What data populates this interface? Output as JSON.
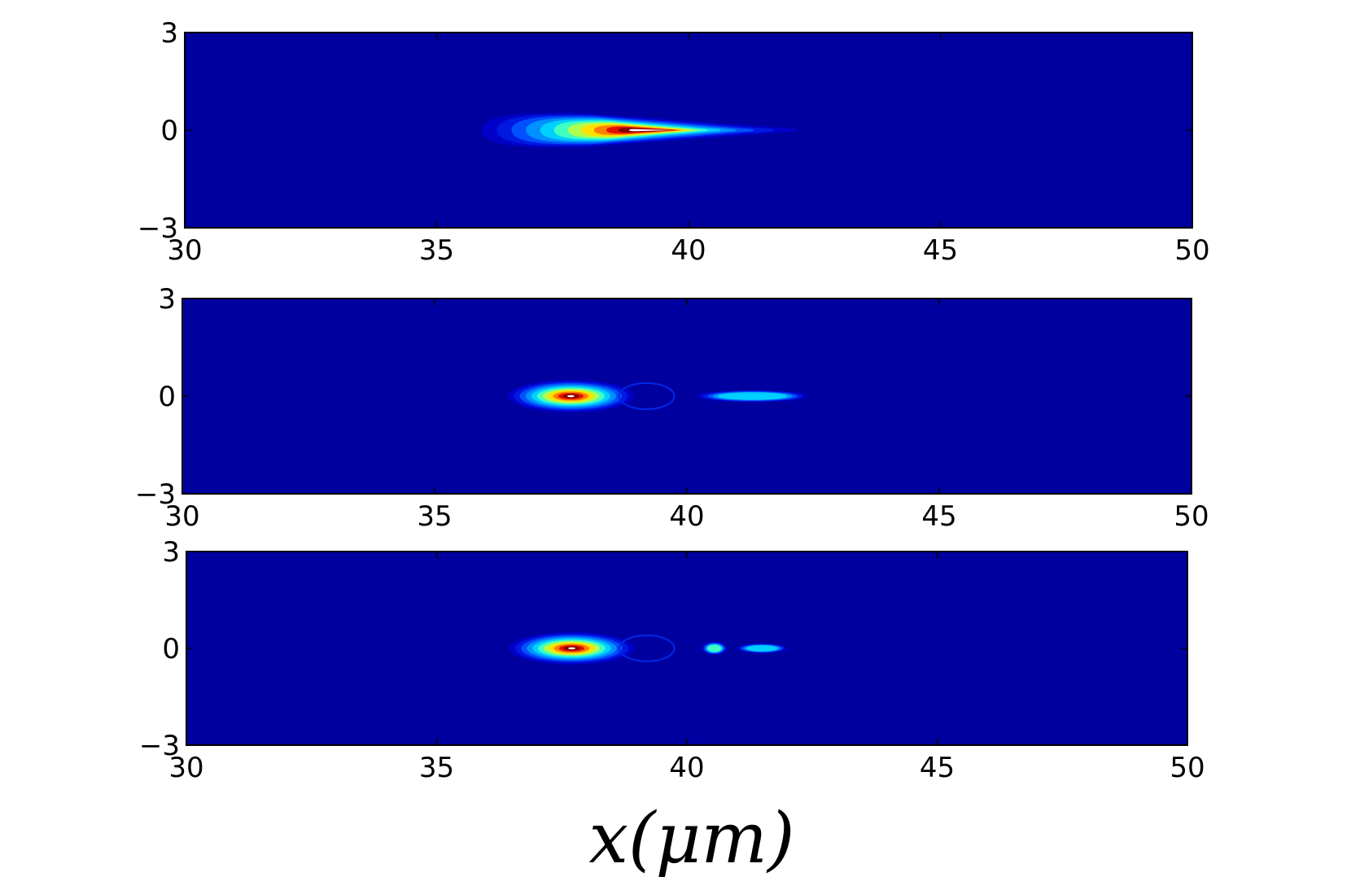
{
  "chart_data": [
    {
      "type": "heatmap",
      "xlim": [
        30,
        50
      ],
      "ylim": [
        -3,
        3
      ],
      "xticks": [
        "30",
        "35",
        "40",
        "45",
        "50"
      ],
      "yticks": [
        "3",
        "0",
        "−3"
      ],
      "background_color": "#00009f",
      "blobs": [
        {
          "x_center": 39.0,
          "y_center": 0,
          "x_half_width": 3.1,
          "y_half_width": 0.55,
          "peak": 1.0,
          "shape": "teardrop"
        }
      ]
    },
    {
      "type": "heatmap",
      "xlim": [
        30,
        50
      ],
      "ylim": [
        -3,
        3
      ],
      "xticks": [
        "30",
        "35",
        "40",
        "45",
        "50"
      ],
      "yticks": [
        "3",
        "0",
        "−3"
      ],
      "background_color": "#00009f",
      "blobs": [
        {
          "x_center": 37.7,
          "y_center": 0,
          "x_half_width": 1.25,
          "y_half_width": 0.5,
          "peak": 1.0,
          "shape": "ellipse"
        },
        {
          "x_center": 41.3,
          "y_center": 0,
          "x_half_width": 1.1,
          "y_half_width": 0.18,
          "peak": 0.45,
          "shape": "ellipse"
        }
      ]
    },
    {
      "type": "heatmap",
      "xlim": [
        30,
        50
      ],
      "ylim": [
        -3,
        3
      ],
      "xticks": [
        "30",
        "35",
        "40",
        "45",
        "50"
      ],
      "yticks": [
        "3",
        "0",
        "−3"
      ],
      "background_color": "#00009f",
      "blobs": [
        {
          "x_center": 37.7,
          "y_center": 0,
          "x_half_width": 1.25,
          "y_half_width": 0.5,
          "peak": 1.0,
          "shape": "ellipse"
        },
        {
          "x_center": 40.55,
          "y_center": 0,
          "x_half_width": 0.25,
          "y_half_width": 0.2,
          "peak": 0.5,
          "shape": "ellipse"
        },
        {
          "x_center": 41.5,
          "y_center": 0,
          "x_half_width": 0.5,
          "y_half_width": 0.15,
          "peak": 0.42,
          "shape": "ellipse"
        }
      ]
    }
  ],
  "xlabel": "x(μm)"
}
